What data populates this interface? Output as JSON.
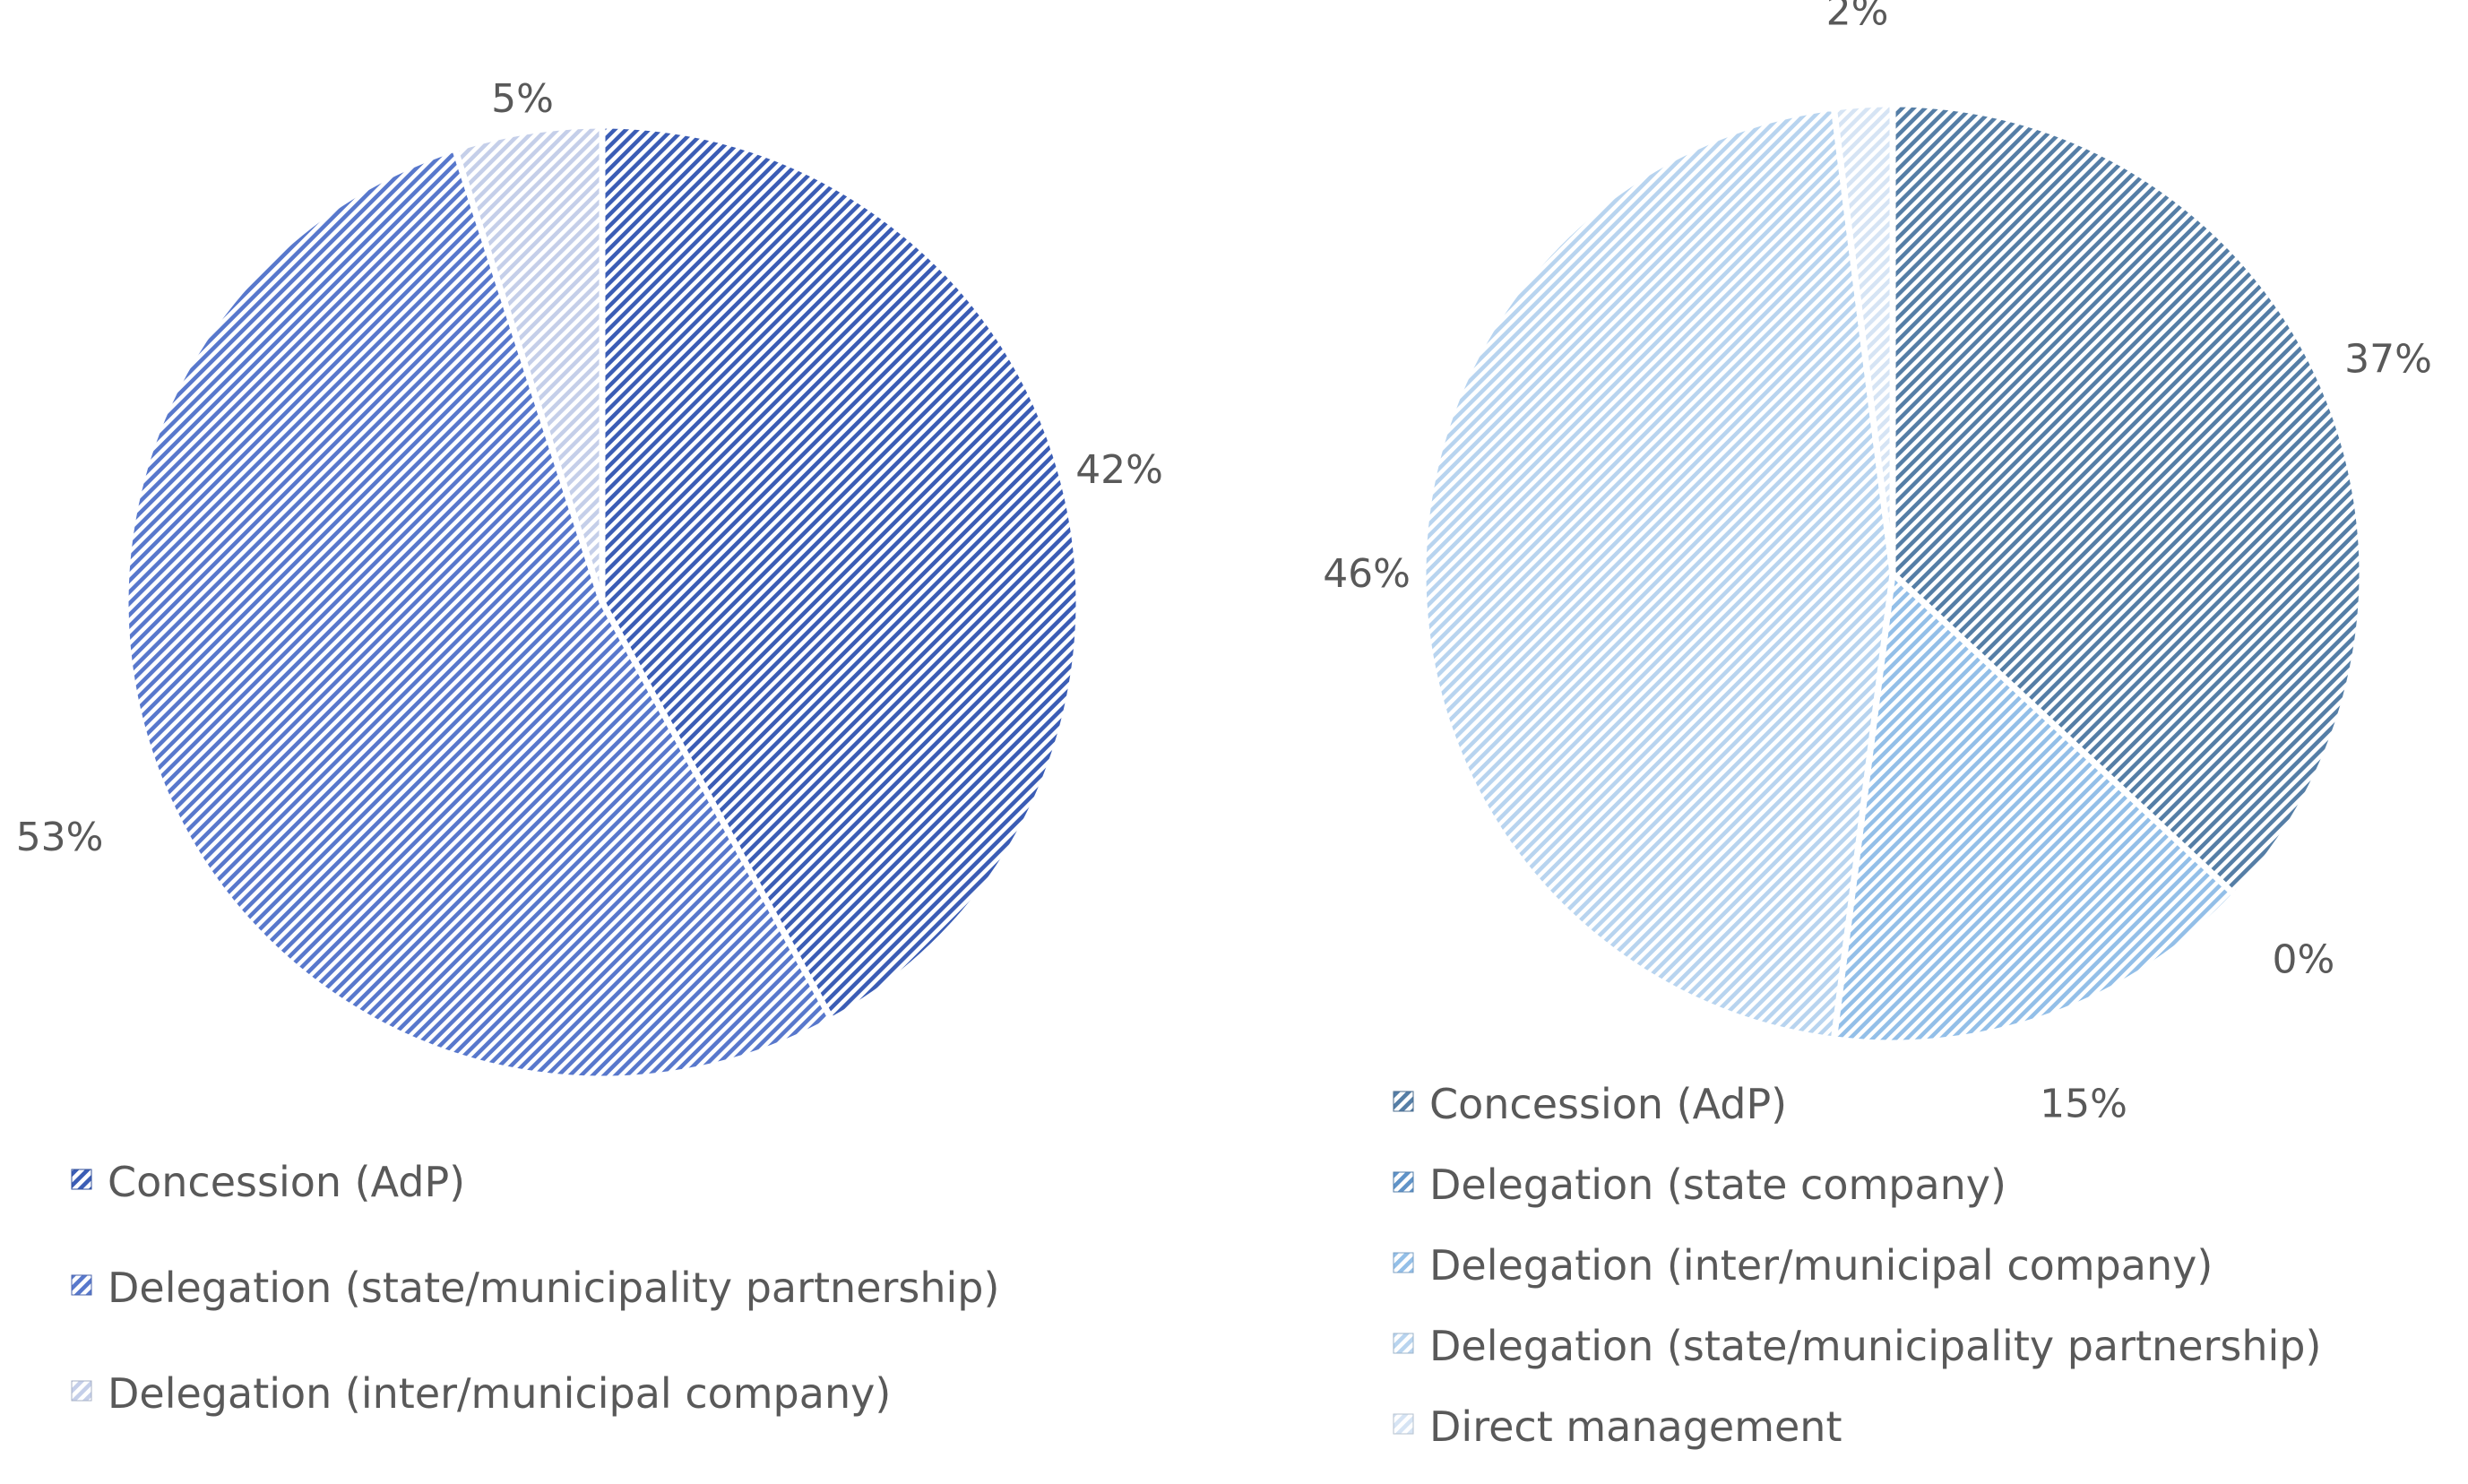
{
  "chart_data": [
    {
      "type": "pie",
      "categories": [
        "Concession (AdP)",
        "Delegation (state/municipality partnership)",
        "Delegation (inter/municipal company)"
      ],
      "values": [
        42,
        53,
        5
      ],
      "data_labels": [
        "42%",
        "53%",
        "5%"
      ],
      "legend_entries": [
        "Concession (AdP)",
        "Delegation (state/municipality partnership)",
        "Delegation (inter/municipal company)"
      ],
      "colors": [
        "#3b5db5",
        "#5878cc",
        "#c5cfe9"
      ],
      "legend_position": "bottom"
    },
    {
      "type": "pie",
      "categories": [
        "Concession (AdP)",
        "Delegation (state company)",
        "Delegation (inter/municipal company)",
        "Delegation (state/municipality partnership)",
        "Direct management"
      ],
      "values": [
        37,
        0,
        15,
        46,
        2
      ],
      "data_labels": [
        "37%",
        "0%",
        "15%",
        "46%",
        "2%"
      ],
      "legend_entries": [
        "Concession (AdP)",
        "Delegation (state company)",
        "Delegation (inter/municipal company)",
        "Delegation (state/municipality partnership)",
        "Direct management"
      ],
      "colors": [
        "#557ea6",
        "#5f93c8",
        "#93bfe8",
        "#b8d4ef",
        "#d6e4f4"
      ],
      "legend_position": "bottom"
    }
  ]
}
